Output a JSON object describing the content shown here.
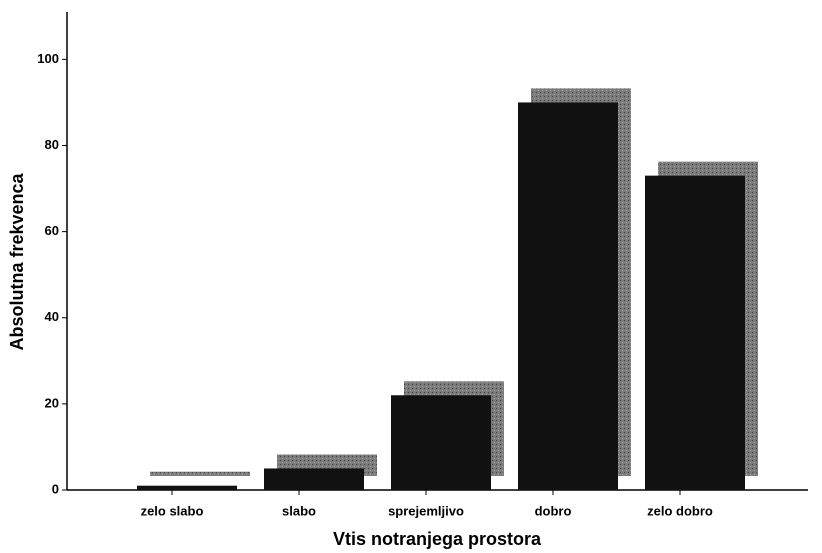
{
  "chart_data": {
    "type": "bar",
    "categories": [
      "zelo slabo",
      "slabo",
      "sprejemljivo",
      "dobro",
      "zelo dobro"
    ],
    "values": [
      1,
      5,
      22,
      90,
      73
    ],
    "color": "#111111",
    "xlabel": "Vtis notranjega prostora",
    "ylabel": "Absolutna frekvenca",
    "ylim": [
      0,
      111
    ],
    "yticks": [
      0,
      20,
      40,
      60,
      80,
      100
    ],
    "grid": false
  }
}
